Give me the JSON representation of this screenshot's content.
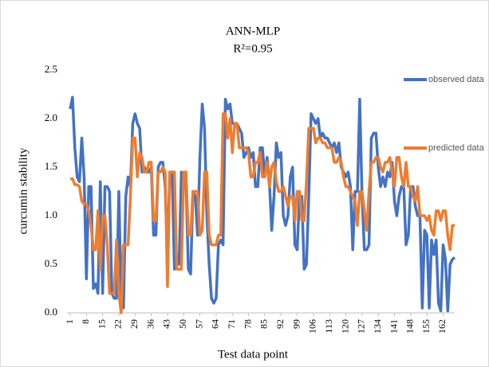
{
  "chart_data": {
    "type": "line",
    "title": "ANN-MLP",
    "subtitle": "R²=0.95",
    "x_label": "Test data point",
    "y_label": "curcumin stability",
    "x": [
      1,
      2,
      3,
      4,
      5,
      6,
      7,
      8,
      9,
      10,
      11,
      12,
      13,
      14,
      15,
      16,
      17,
      18,
      19,
      20,
      21,
      22,
      23,
      24,
      25,
      26,
      27,
      28,
      29,
      30,
      31,
      32,
      33,
      34,
      35,
      36,
      37,
      38,
      39,
      40,
      41,
      42,
      43,
      44,
      45,
      46,
      47,
      48,
      49,
      50,
      51,
      52,
      53,
      54,
      55,
      56,
      57,
      58,
      59,
      60,
      61,
      62,
      63,
      64,
      65,
      66,
      67,
      68,
      69,
      70,
      71,
      72,
      73,
      74,
      75,
      76,
      77,
      78,
      79,
      80,
      81,
      82,
      83,
      84,
      85,
      86,
      87,
      88,
      89,
      90,
      91,
      92,
      93,
      94,
      95,
      96,
      97,
      98,
      99,
      100,
      101,
      102,
      103,
      104,
      105,
      106,
      107,
      108,
      109,
      110,
      111,
      112,
      113,
      114,
      115,
      116,
      117,
      118,
      119,
      120,
      121,
      122,
      123,
      124,
      125,
      126,
      127,
      128,
      129,
      130,
      131,
      132,
      133,
      134,
      135,
      136,
      137,
      138,
      139,
      140,
      141,
      142,
      143,
      144,
      145,
      146,
      147,
      148,
      149,
      150,
      151,
      152,
      153,
      154,
      155,
      156,
      157,
      158,
      159,
      160,
      161,
      162,
      163,
      164,
      165,
      166,
      167
    ],
    "series": [
      {
        "name": "observed data",
        "color": "#4472c4",
        "values": [
          2.1,
          2.22,
          1.7,
          1.4,
          1.35,
          1.8,
          1.4,
          0.35,
          1.3,
          1.3,
          0.25,
          0.3,
          0.2,
          1.35,
          0.2,
          1.3,
          1.3,
          1.25,
          0.2,
          0.15,
          0.15,
          1.25,
          0.15,
          0.05,
          1.2,
          1.4,
          1.3,
          1.95,
          2.05,
          1.95,
          1.9,
          1.45,
          1.5,
          1.45,
          1.45,
          1.5,
          0.8,
          0.8,
          1.5,
          1.55,
          1.55,
          1.3,
          0.6,
          1.45,
          1.45,
          0.45,
          0.5,
          0.5,
          1.45,
          1.35,
          1.35,
          0.45,
          0.4,
          1.25,
          1.2,
          0.8,
          1.6,
          2.15,
          1.9,
          1.0,
          0.5,
          0.15,
          0.1,
          0.15,
          0.7,
          0.75,
          0.7,
          2.2,
          2.1,
          2.15,
          1.95,
          1.95,
          1.95,
          1.9,
          1.85,
          1.6,
          1.65,
          1.7,
          1.6,
          1.65,
          1.3,
          1.3,
          1.7,
          1.7,
          1.4,
          1.6,
          1.35,
          0.85,
          1.2,
          1.75,
          1.6,
          1.65,
          1.0,
          0.9,
          1.0,
          1.4,
          1.5,
          0.7,
          0.65,
          1.2,
          1.2,
          0.45,
          0.5,
          1.2,
          2.05,
          2.0,
          1.95,
          2.0,
          1.8,
          1.85,
          1.8,
          1.8,
          1.75,
          1.7,
          1.75,
          1.65,
          1.75,
          1.5,
          1.45,
          1.4,
          1.45,
          1.3,
          0.65,
          1.25,
          1.25,
          2.2,
          1.2,
          0.65,
          0.65,
          0.7,
          1.8,
          1.85,
          1.85,
          1.5,
          1.3,
          1.4,
          1.3,
          1.45,
          1.4,
          1.55,
          1.15,
          1.0,
          1.2,
          1.3,
          1.3,
          0.7,
          0.8,
          1.3,
          1.3,
          1.1,
          1.0,
          1.0,
          0.05,
          0.85,
          0.8,
          0.05,
          0.75,
          0.6,
          0.75,
          0.1,
          0.02,
          0.7,
          0.55,
          0.02,
          0.5,
          0.55,
          0.57
        ]
      },
      {
        "name": "predicted data",
        "color": "#ed7d31",
        "values": [
          1.38,
          1.38,
          1.32,
          1.32,
          1.3,
          1.15,
          1.12,
          1.12,
          1.05,
          0.9,
          0.65,
          0.65,
          1.05,
          0.45,
          1.0,
          1.0,
          0.7,
          0.2,
          0.2,
          0.2,
          0.75,
          0.2,
          0.0,
          0.7,
          0.7,
          0.7,
          1.2,
          1.8,
          1.8,
          1.4,
          1.65,
          1.6,
          1.45,
          1.45,
          1.55,
          1.55,
          0.95,
          0.95,
          1.45,
          1.45,
          1.5,
          1.45,
          0.27,
          1.45,
          1.45,
          1.45,
          0.45,
          0.45,
          0.45,
          1.45,
          1.45,
          0.8,
          0.8,
          1.25,
          1.25,
          1.25,
          0.8,
          0.85,
          1.45,
          1.45,
          0.8,
          0.7,
          0.7,
          0.7,
          0.8,
          0.8,
          2.05,
          2.05,
          1.8,
          2.0,
          1.65,
          1.95,
          1.95,
          1.7,
          1.7,
          1.7,
          1.7,
          1.65,
          1.4,
          1.4,
          1.55,
          1.55,
          1.65,
          1.4,
          1.4,
          1.55,
          1.3,
          1.5,
          1.55,
          1.35,
          1.25,
          1.25,
          1.3,
          1.2,
          1.1,
          1.2,
          1.2,
          0.95,
          1.25,
          1.25,
          0.95,
          0.95,
          1.35,
          1.9,
          1.9,
          1.9,
          1.75,
          1.8,
          1.8,
          1.75,
          1.75,
          1.7,
          1.7,
          1.7,
          1.55,
          1.55,
          1.6,
          1.55,
          1.4,
          1.3,
          1.3,
          1.25,
          1.2,
          1.15,
          0.9,
          1.25,
          1.25,
          1.05,
          0.85,
          1.25,
          1.55,
          1.55,
          1.6,
          1.6,
          1.5,
          1.45,
          1.55,
          1.55,
          1.6,
          1.45,
          1.3,
          1.6,
          1.6,
          1.4,
          1.3,
          1.55,
          1.3,
          1.3,
          1.2,
          1.15,
          1.3,
          1.0,
          1.0,
          1.0,
          0.95,
          1.0,
          0.85,
          0.8,
          1.05,
          1.05,
          0.95,
          1.05,
          1.05,
          0.8,
          0.65,
          0.9,
          0.9
        ]
      }
    ],
    "xlim": [
      1,
      167
    ],
    "xticks": [
      1,
      8,
      15,
      22,
      29,
      36,
      43,
      50,
      57,
      64,
      71,
      78,
      85,
      92,
      99,
      106,
      113,
      120,
      127,
      134,
      141,
      148,
      155,
      162
    ],
    "ylim": [
      0,
      2.5
    ],
    "yticks": [
      {
        "value": 0,
        "label": "0.0"
      },
      0.5,
      {
        "value": 1,
        "label": "1.0"
      },
      1.5,
      {
        "value": 2,
        "label": "2.0"
      },
      2.5
    ],
    "grid": false,
    "legend": "right"
  }
}
